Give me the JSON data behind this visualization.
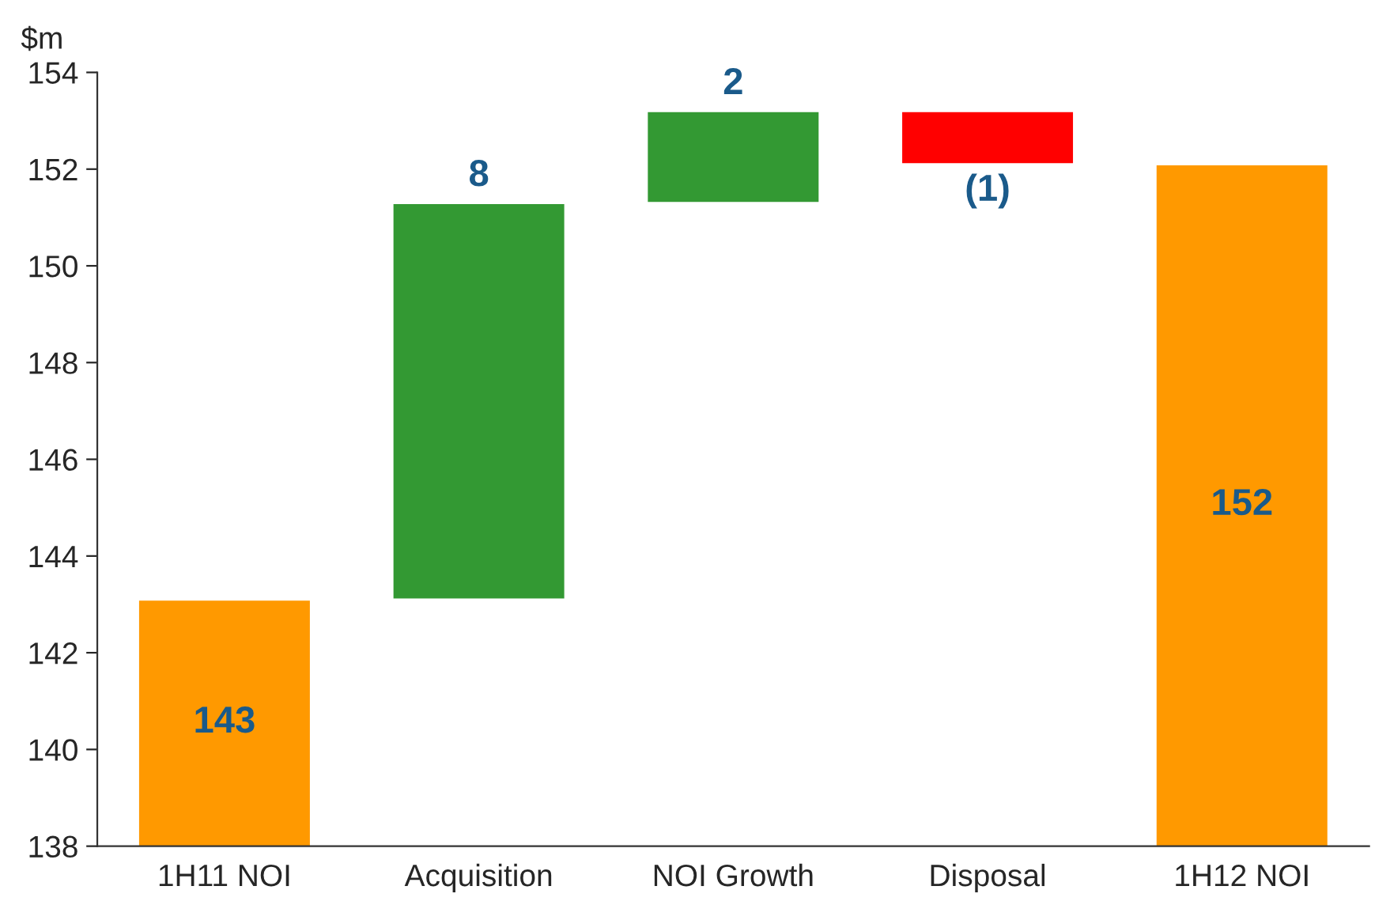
{
  "chart_data": {
    "type": "bar",
    "ylabel": "$m",
    "categories": [
      "1H11 NOI",
      "Acquisition",
      "NOI Growth",
      "Disposal",
      "1H12 NOI"
    ],
    "values": [
      143.1,
      8.2,
      1.9,
      -1.1,
      152.1
    ],
    "base": [
      null,
      143.1,
      151.3,
      153.2,
      null
    ],
    "colors": [
      "#ff9900",
      "#339933",
      "#339933",
      "#ff0000",
      "#ff9900"
    ],
    "value_labels": [
      "143",
      "8",
      "2",
      "(1)",
      "152"
    ],
    "ylim": [
      138,
      154
    ],
    "yticks": [
      138,
      140,
      142,
      144,
      146,
      148,
      150,
      152,
      154
    ],
    "grid": false,
    "legend": false
  }
}
